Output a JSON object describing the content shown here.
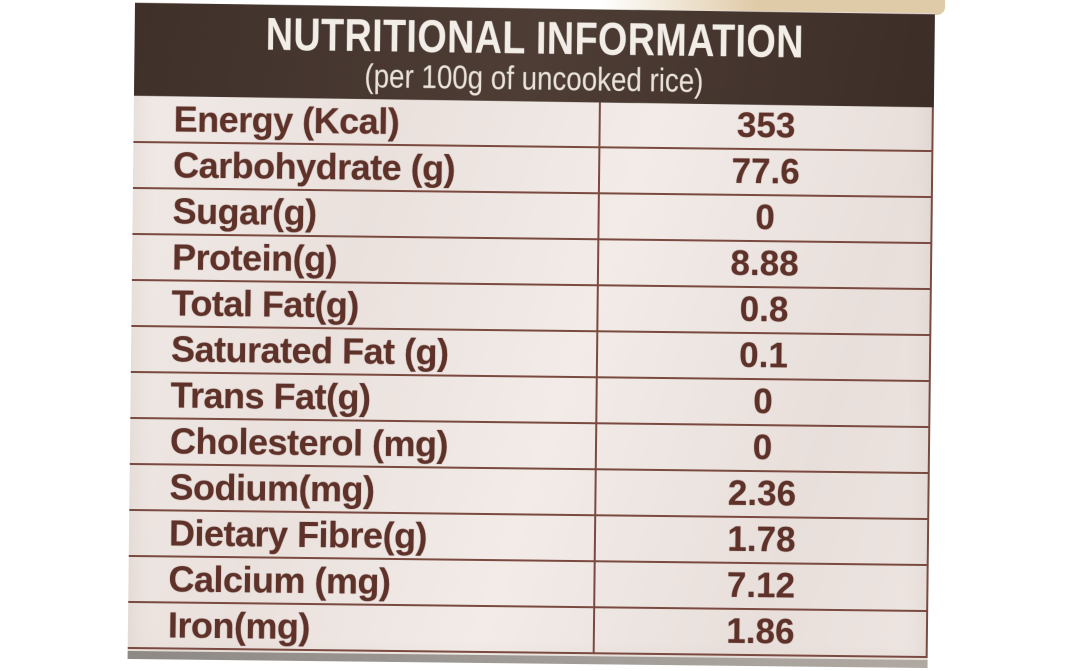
{
  "header": {
    "title": "NUTRITIONAL INFORMATION",
    "subtitle": "(per 100g of uncooked rice)"
  },
  "table": {
    "rows": [
      {
        "label": "Energy (Kcal)",
        "value": "353"
      },
      {
        "label": "Carbohydrate (g)",
        "value": "77.6"
      },
      {
        "label": "Sugar(g)",
        "value": "0"
      },
      {
        "label": "Protein(g)",
        "value": "8.88"
      },
      {
        "label": "Total Fat(g)",
        "value": "0.8"
      },
      {
        "label": "Saturated Fat (g)",
        "value": "0.1"
      },
      {
        "label": "Trans Fat(g)",
        "value": "0"
      },
      {
        "label": "Cholesterol (mg)",
        "value": "0"
      },
      {
        "label": "Sodium(mg)",
        "value": "2.36"
      },
      {
        "label": "Dietary Fibre(g)",
        "value": "1.78"
      },
      {
        "label": "Calcium (mg)",
        "value": "7.12"
      },
      {
        "label": "Iron(mg)",
        "value": "1.86"
      }
    ]
  },
  "colors": {
    "photo_bg": "#ffffff",
    "package_tan": "#e0cba8",
    "label_bg": "#ece3df",
    "header_bg": "#46362e",
    "header_text": "#f2ede7",
    "row_text": "#5e3129",
    "grid_line": "#7a4a40",
    "fold_shadow": "#9e9995"
  }
}
